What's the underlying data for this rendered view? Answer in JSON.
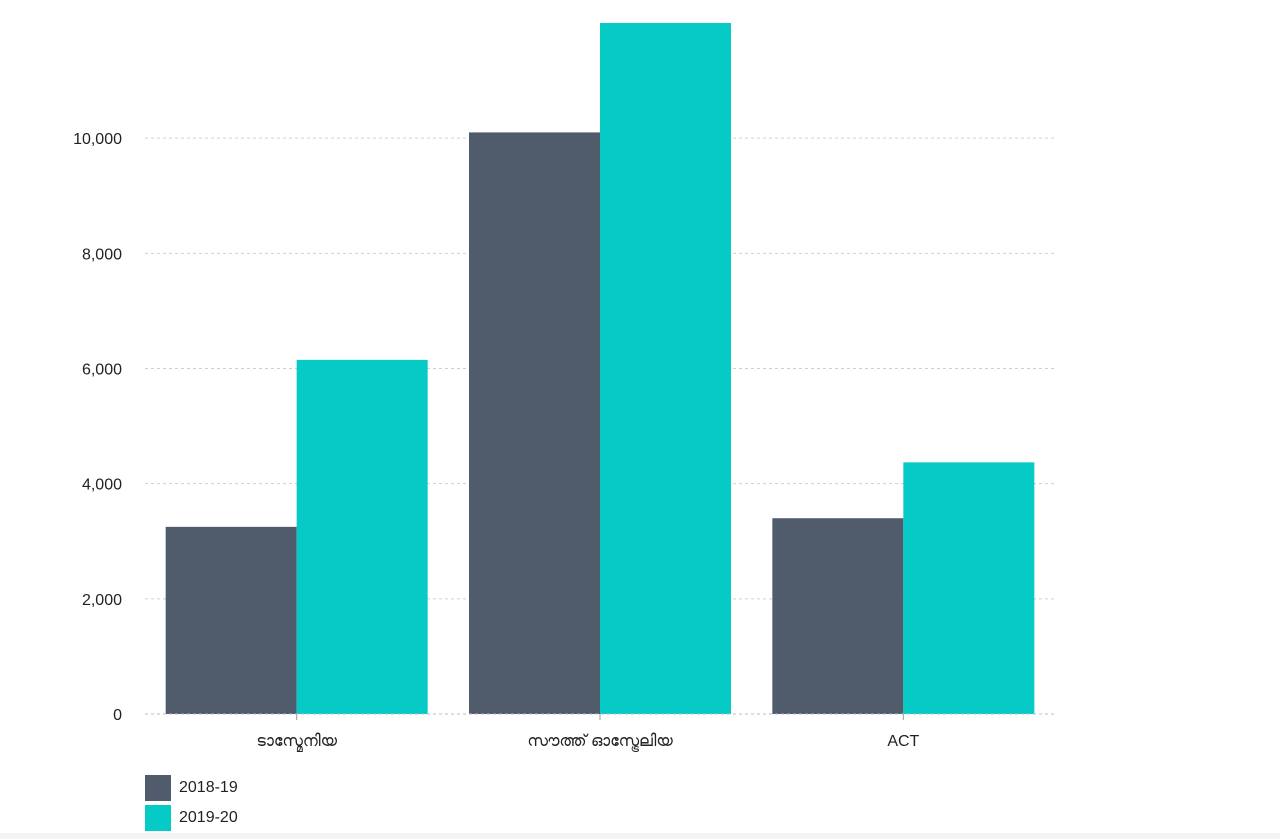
{
  "chart_data": {
    "type": "bar",
    "categories": [
      "ടാസ്മേനിയ",
      "സൗത്ത് ഓസ്ട്രേലിയ",
      "ACT"
    ],
    "series": [
      {
        "name": "2018-19",
        "values": [
          3250,
          10100,
          3400
        ],
        "color": "#505c6c"
      },
      {
        "name": "2019-20",
        "values": [
          6150,
          12000,
          4370
        ],
        "color": "#06cac6"
      }
    ],
    "yticks": [
      0,
      2000,
      4000,
      6000,
      8000,
      10000
    ],
    "ytick_labels": [
      "0",
      "2,000",
      "4,000",
      "6,000",
      "8,000",
      "10,000"
    ],
    "ylim": [
      0,
      12000
    ],
    "grid": true,
    "legend": "bottom-left"
  }
}
